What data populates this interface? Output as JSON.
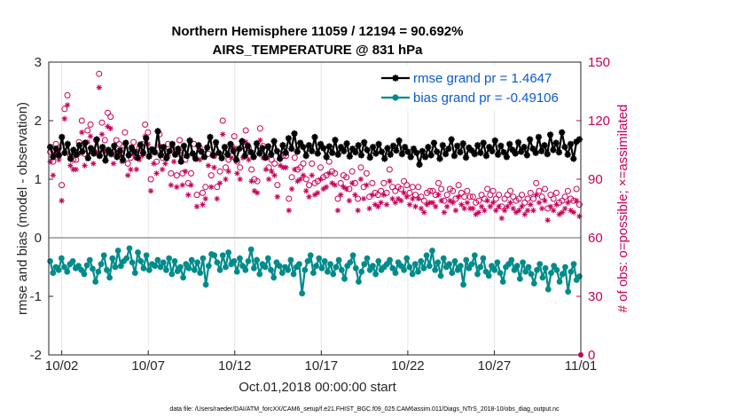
{
  "chart_data": {
    "type": "line",
    "title": "Northern Hemisphere 11059 / 12194 = 90.692%",
    "subtitle": "AIRS_TEMPERATURE @ 831 hPa",
    "xlabel": "Oct.01,2018 00:00:00 start",
    "ylabel": "rmse and bias (model - observation)",
    "y2label": "# of obs: o=possible; ×=assimilated",
    "footnote": "data file: /Users/raeder/DAI/ATM_forcXX/CAM6_setup/f.e21.FHIST_BGC.f09_025.CAM6assim.011/Diags_NTrS_2018-10/obs_diag_output.nc",
    "x_ticks": [
      "10/02",
      "10/07",
      "10/12",
      "10/17",
      "10/22",
      "10/27",
      "11/01"
    ],
    "x_tick_days": [
      1,
      6,
      11,
      16,
      21,
      26,
      31
    ],
    "xlim_days": [
      0.25,
      31
    ],
    "ylim": [
      -2,
      3
    ],
    "y_ticks": [
      "3",
      "2",
      "1",
      "0",
      "-1",
      "-2"
    ],
    "y2lim": [
      0,
      150
    ],
    "y2_ticks": [
      "150",
      "120",
      "90",
      "60",
      "30",
      "0"
    ],
    "grid": true,
    "legend_position": "top-right",
    "series": [
      {
        "name": "rmse grand pr = 1.4647",
        "color": "#000000",
        "marker": "asterisk-filled",
        "values": [
          1.55,
          1.38,
          1.52,
          1.41,
          1.72,
          1.45,
          1.6,
          1.35,
          1.5,
          1.42,
          1.58,
          1.47,
          1.62,
          1.36,
          1.53,
          1.44,
          1.68,
          1.4,
          1.55,
          1.32,
          1.5,
          1.43,
          1.57,
          1.38,
          1.49,
          1.33,
          1.62,
          1.41,
          1.54,
          1.47,
          1.37,
          1.59,
          1.45,
          1.7,
          1.39,
          1.51,
          1.46,
          1.82,
          1.41,
          1.55,
          1.36,
          1.48,
          1.6,
          1.42,
          1.52,
          1.3,
          1.57,
          1.4,
          1.66,
          1.44,
          1.35,
          1.58,
          1.47,
          1.38,
          1.54,
          1.72,
          1.41,
          1.63,
          1.45,
          1.36,
          1.55,
          1.42,
          1.6,
          1.48,
          1.33,
          1.52,
          1.65,
          1.4,
          1.57,
          1.46,
          1.38,
          1.61,
          1.44,
          1.53,
          1.37,
          1.56,
          1.42,
          1.65,
          1.48,
          1.35,
          1.58,
          1.45,
          1.7,
          1.52,
          1.78,
          1.47,
          1.62,
          1.55,
          1.4,
          1.58,
          1.48,
          1.72,
          1.44,
          1.6,
          1.53,
          1.38,
          1.56,
          1.45,
          1.67,
          1.42,
          1.55,
          1.48,
          1.61,
          1.39,
          1.52,
          1.46,
          1.58,
          1.41,
          1.63,
          1.5,
          1.37,
          1.55,
          1.44,
          1.6,
          1.47,
          1.35,
          1.53,
          1.42,
          1.57,
          1.49,
          1.66,
          1.43,
          1.55,
          1.47,
          1.38,
          1.52,
          1.45,
          1.25,
          1.48,
          1.38,
          1.55,
          1.41,
          1.62,
          1.47,
          1.35,
          1.58,
          1.43,
          1.52,
          1.68,
          1.4,
          1.57,
          1.46,
          1.61,
          1.37,
          1.54,
          1.49,
          1.43,
          1.58,
          1.45,
          1.62,
          1.4,
          1.55,
          1.48,
          1.66,
          1.42,
          1.57,
          1.46,
          1.38,
          1.6,
          1.5,
          1.44,
          1.63,
          1.47,
          1.55,
          1.41,
          1.68,
          1.52,
          1.45,
          1.72,
          1.48,
          1.58,
          1.43,
          1.76,
          1.5,
          1.62,
          1.46,
          1.8,
          1.55,
          1.42,
          1.6,
          1.35,
          1.64,
          1.68
        ]
      },
      {
        "name": "bias grand pr = -0.49106",
        "color": "#008b8b",
        "marker": "circle-filled",
        "values": [
          -0.4,
          -0.6,
          -0.5,
          -0.55,
          -0.35,
          -0.5,
          -0.58,
          -0.45,
          -0.4,
          -0.52,
          -0.48,
          -0.55,
          -0.62,
          -0.47,
          -0.38,
          -0.53,
          -0.75,
          -0.58,
          -0.45,
          -0.3,
          -0.55,
          -0.68,
          -0.35,
          -0.5,
          -0.22,
          -0.48,
          -0.4,
          -0.35,
          -0.18,
          -0.42,
          -0.6,
          -0.25,
          -0.4,
          -0.52,
          -0.3,
          -0.55,
          -0.45,
          -0.48,
          -0.38,
          -0.5,
          -0.42,
          -0.55,
          -0.35,
          -0.62,
          -0.4,
          -0.57,
          -0.5,
          -0.68,
          -0.45,
          -0.52,
          -0.38,
          -0.55,
          -0.42,
          -0.6,
          -0.35,
          -0.8,
          -0.48,
          -0.28,
          -0.3,
          -0.42,
          -0.55,
          -0.3,
          -0.5,
          -0.25,
          -0.45,
          -0.4,
          -0.58,
          -0.35,
          -0.48,
          -0.55,
          -0.4,
          -0.2,
          -0.52,
          -0.38,
          -0.62,
          -0.45,
          -0.5,
          -0.35,
          -0.55,
          -0.68,
          -0.42,
          -0.48,
          -0.6,
          -0.5,
          -0.55,
          -0.38,
          -0.62,
          -0.5,
          -0.45,
          -0.95,
          -0.55,
          -0.4,
          -0.3,
          -0.6,
          -0.48,
          -0.35,
          -0.52,
          -0.4,
          -0.58,
          -0.45,
          -0.62,
          -0.5,
          -0.38,
          -0.55,
          -0.7,
          -0.48,
          -0.42,
          -0.3,
          -0.52,
          -0.75,
          -0.58,
          -0.45,
          -0.35,
          -0.55,
          -0.48,
          -0.62,
          -0.4,
          -0.55,
          -0.5,
          -0.45,
          -0.38,
          -0.52,
          -0.6,
          -0.42,
          -0.48,
          -0.55,
          -0.35,
          -0.5,
          -0.62,
          -0.45,
          -0.58,
          -0.4,
          -0.52,
          -0.3,
          -0.48,
          -0.22,
          -0.55,
          -0.42,
          -0.65,
          -0.35,
          -0.5,
          -0.45,
          -0.6,
          -0.4,
          -0.55,
          -0.48,
          -0.8,
          -0.38,
          -0.52,
          -0.45,
          -0.3,
          -0.62,
          -0.5,
          -0.35,
          -0.58,
          -0.65,
          -0.48,
          -0.55,
          -0.42,
          -0.6,
          -0.75,
          -0.5,
          -0.45,
          -0.38,
          -0.55,
          -0.48,
          -0.7,
          -0.42,
          -0.58,
          -0.5,
          -0.62,
          -0.78,
          -0.55,
          -0.45,
          -0.68,
          -0.52,
          -0.88,
          -0.6,
          -0.48,
          -0.55,
          -0.75,
          -0.62,
          -0.5,
          -0.92,
          -0.58,
          -0.45,
          -0.72,
          -0.66
        ]
      },
      {
        "name": "obs possible",
        "color": "#c8005a",
        "marker": "open-circle",
        "axis": "right",
        "values": [
          104,
          99,
          108,
          106,
          87,
          126,
          133,
          102,
          100,
          100,
          109,
          120,
          103,
          115,
          118,
          104,
          110,
          144,
          119,
          110,
          124,
          122,
          104,
          110,
          108,
          105,
          114,
          98,
          101,
          109,
          101,
          106,
          108,
          118,
          114,
          90,
          104,
          99,
          113,
          101,
          104,
          108,
          93,
          105,
          92,
          110,
          93,
          100,
          88,
          93,
          108,
          82,
          106,
          83,
          86,
          103,
          92,
          102,
          86,
          94,
          120,
          96,
          100,
          107,
          112,
          99,
          96,
          107,
          115,
          106,
          95,
          90,
          89,
          116,
          107,
          101,
          96,
          100,
          98,
          87,
          103,
          102,
          102,
          80,
          91,
          101,
          95,
          96,
          98,
          90,
          87,
          98,
          88,
          89,
          96,
          91,
          92,
          99,
          94,
          93,
          80,
          88,
          92,
          91,
          85,
          94,
          88,
          80,
          96,
          86,
          93,
          81,
          88,
          83,
          82,
          84,
          88,
          83,
          95,
          86,
          84,
          86,
          85,
          89,
          87,
          83,
          86,
          82,
          86,
          81,
          79,
          83,
          84,
          84,
          82,
          88,
          85,
          79,
          82,
          85,
          84,
          80,
          87,
          83,
          81,
          84,
          81,
          81,
          78,
          79,
          82,
          80,
          85,
          82,
          84,
          80,
          82,
          76,
          80,
          82,
          84,
          81,
          79,
          80,
          82,
          78,
          80,
          83,
          80,
          88,
          84,
          81,
          85,
          75,
          82,
          80,
          83,
          78,
          79,
          81,
          84,
          80,
          79,
          85,
          77
        ]
      },
      {
        "name": "obs assimilated",
        "color": "#c8005a",
        "marker": "asterisk",
        "axis": "right",
        "values": [
          99,
          92,
          103,
          100,
          79,
          121,
          128,
          97,
          95,
          95,
          103,
          114,
          97,
          109,
          112,
          98,
          104,
          137,
          113,
          104,
          117,
          116,
          98,
          104,
          102,
          99,
          108,
          92,
          95,
          103,
          95,
          100,
          102,
          112,
          108,
          84,
          98,
          93,
          107,
          95,
          98,
          102,
          87,
          99,
          86,
          104,
          87,
          94,
          82,
          87,
          102,
          76,
          100,
          77,
          80,
          97,
          86,
          96,
          80,
          88,
          113,
          90,
          94,
          101,
          106,
          93,
          90,
          101,
          109,
          100,
          89,
          84,
          83,
          110,
          101,
          95,
          90,
          94,
          92,
          81,
          97,
          96,
          96,
          74,
          85,
          95,
          89,
          90,
          92,
          84,
          81,
          92,
          82,
          83,
          90,
          85,
          86,
          93,
          88,
          87,
          74,
          82,
          86,
          85,
          79,
          88,
          82,
          74,
          90,
          80,
          87,
          75,
          82,
          77,
          76,
          78,
          82,
          77,
          89,
          80,
          78,
          80,
          79,
          83,
          81,
          77,
          80,
          76,
          80,
          75,
          73,
          77,
          78,
          78,
          76,
          82,
          79,
          73,
          76,
          79,
          78,
          74,
          81,
          77,
          75,
          78,
          75,
          75,
          72,
          73,
          76,
          74,
          79,
          76,
          78,
          74,
          76,
          70,
          74,
          76,
          78,
          75,
          73,
          74,
          76,
          72,
          74,
          77,
          74,
          82,
          78,
          75,
          79,
          69,
          76,
          74,
          77,
          72,
          73,
          75,
          78,
          74,
          73,
          79,
          71
        ]
      }
    ]
  }
}
